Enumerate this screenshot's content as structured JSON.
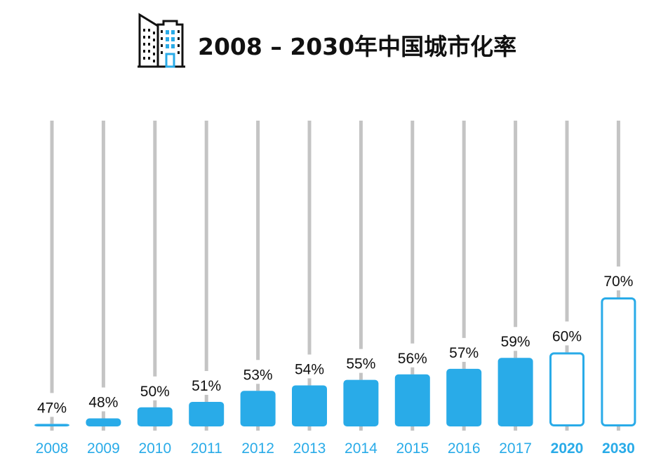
{
  "title": "2008 – 2030年中国城市化率",
  "icon": "city-buildings-icon",
  "colors": {
    "bar_fill": "#29abe8",
    "projection_stroke": "#29abe8",
    "track": "#c4c4c4",
    "year_label": "#29abe8",
    "value_label": "#111111",
    "title": "#111111"
  },
  "chart_data": {
    "type": "bar",
    "title": "2008 – 2030年中国城市化率",
    "categories": [
      "2008",
      "2009",
      "2010",
      "2011",
      "2012",
      "2013",
      "2014",
      "2015",
      "2016",
      "2017",
      "2020",
      "2030"
    ],
    "values": [
      47,
      48,
      50,
      51,
      53,
      54,
      55,
      56,
      57,
      59,
      60,
      70
    ],
    "labels": [
      "47%",
      "48%",
      "50%",
      "51%",
      "53%",
      "54%",
      "55%",
      "56%",
      "57%",
      "59%",
      "60%",
      "70%"
    ],
    "projected": [
      false,
      false,
      false,
      false,
      false,
      false,
      false,
      false,
      false,
      false,
      true,
      true
    ],
    "unit": "%",
    "xlabel": "",
    "ylabel": "",
    "grid": false,
    "legend": "none"
  }
}
